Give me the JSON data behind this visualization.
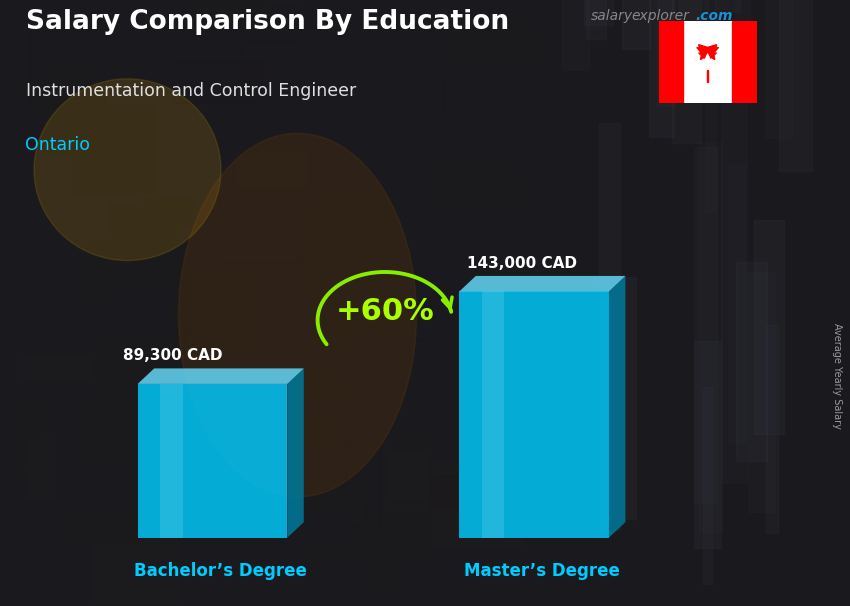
{
  "title_part1": "Salary Comparison By Education",
  "subtitle": "Instrumentation and Control Engineer",
  "location": "Ontario",
  "watermark_salary": "salary",
  "watermark_explorer": "explorer",
  "watermark_com": ".com",
  "ylabel_rotated": "Average Yearly Salary",
  "categories": [
    "Bachelor’s Degree",
    "Master’s Degree"
  ],
  "values": [
    89300,
    143000
  ],
  "value_labels": [
    "89,300 CAD",
    "143,000 CAD"
  ],
  "pct_change": "+60%",
  "bar_face_color": "#00ccff",
  "bar_top_color": "#66ddff",
  "bar_side_color": "#007799",
  "bar_alpha": 0.82,
  "bg_dark": "#1a1a1e",
  "title_color": "#ffffff",
  "subtitle_color": "#e0e0e0",
  "location_color": "#00ccff",
  "watermark_gray": "#888888",
  "watermark_blue": "#1a90d4",
  "value_label_color": "#ffffff",
  "xlabel_color": "#00ccff",
  "pct_color": "#aaff00",
  "arrow_color": "#88ee00",
  "ylabel_color": "#999999"
}
